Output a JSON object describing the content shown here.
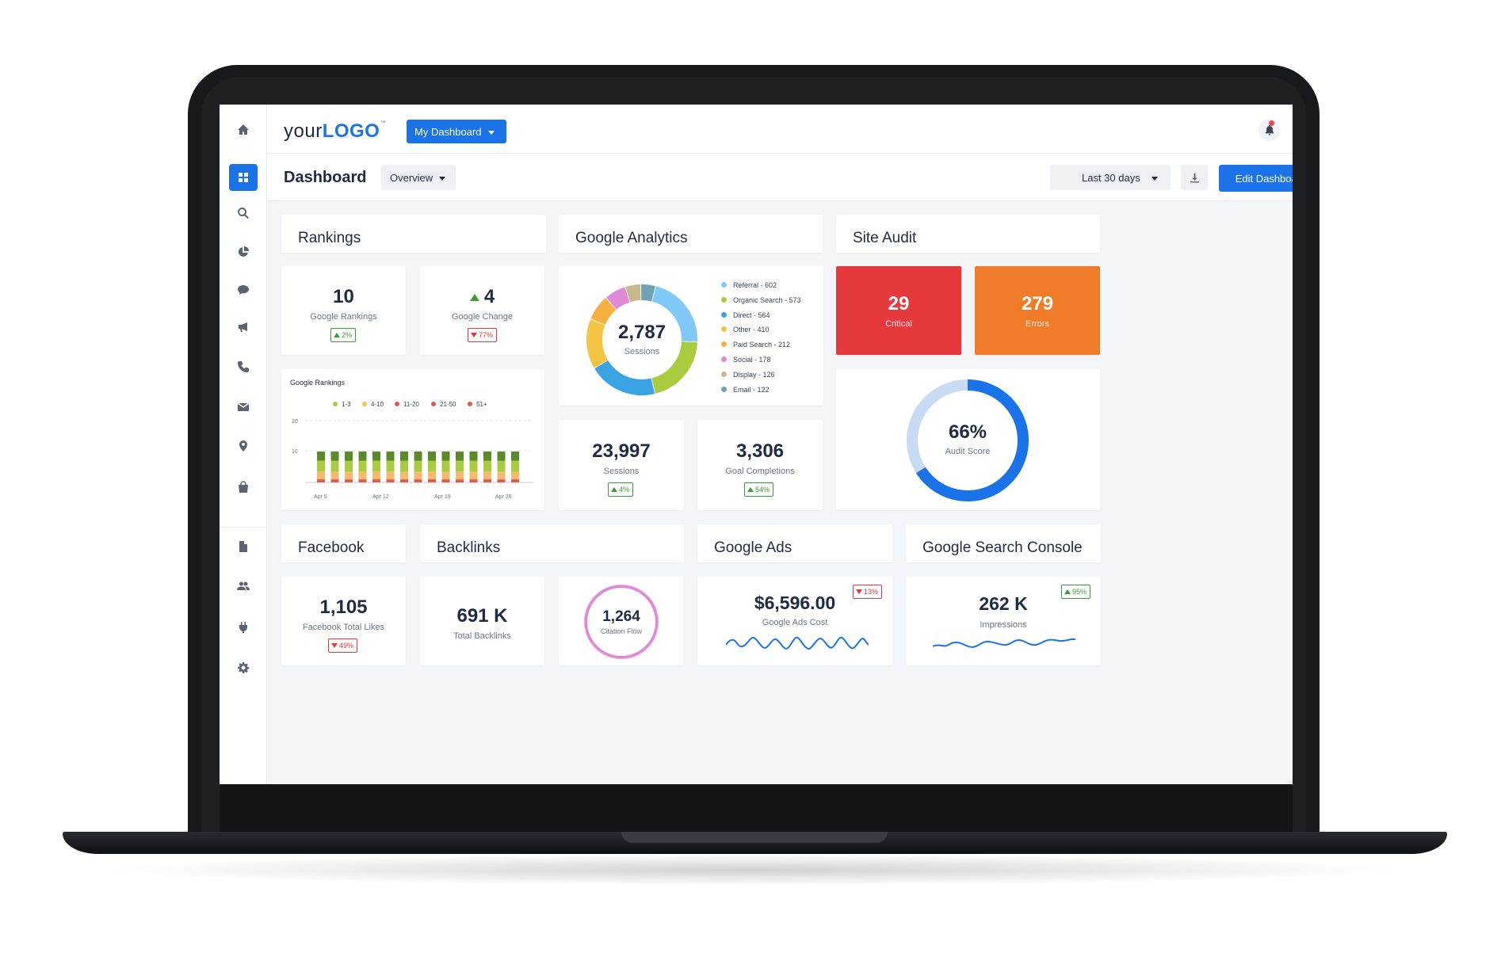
{
  "topbar": {
    "logo_light": "your",
    "logo_bold": "LOGO",
    "logo_tm": "™",
    "dashboard_menu": "My Dashboard"
  },
  "subbar": {
    "title": "Dashboard",
    "view": "Overview",
    "date_range": "Last 30 days",
    "edit_button": "Edit Dashboard"
  },
  "sidebar": {
    "icons": [
      "home-icon",
      "dashboard-icon",
      "search-icon",
      "pie-chart-icon",
      "chat-icon",
      "megaphone-icon",
      "phone-icon",
      "mail-icon",
      "location-pin-icon",
      "shopping-bag-icon",
      "document-icon",
      "users-icon",
      "plug-icon",
      "gear-icon"
    ],
    "active": "dashboard-icon"
  },
  "sections": {
    "rankings": "Rankings",
    "analytics": "Google Analytics",
    "site_audit": "Site Audit",
    "facebook": "Facebook",
    "backlinks": "Backlinks",
    "google_ads": "Google Ads",
    "search_console": "Google Search Console"
  },
  "rankings": {
    "google_rankings": {
      "value": "10",
      "label": "Google Rankings",
      "change": "2%",
      "direction": "up"
    },
    "google_change": {
      "value": "4",
      "label": "Google Change",
      "change": "77%",
      "direction": "down"
    }
  },
  "rankings_chart": {
    "title": "Google Rankings",
    "legend": [
      {
        "name": "1-3",
        "color": "#a9cc3e"
      },
      {
        "name": "4-10",
        "color": "#f4c542"
      },
      {
        "name": "11-20",
        "color": "#e05a4e"
      },
      {
        "name": "21-50",
        "color": "#e05a4e"
      },
      {
        "name": "51+",
        "color": "#e05a4e"
      }
    ],
    "x_ticks": [
      "Apr 5",
      "Apr 12",
      "Apr 19",
      "Apr 26"
    ],
    "y_ticks": [
      "20",
      "10"
    ]
  },
  "chart_data": {
    "type": "bar",
    "stacked": true,
    "title": "Google Rankings",
    "bar_count": 15,
    "x_ticks": [
      "Apr 5",
      "Apr 12",
      "Apr 19",
      "Apr 26"
    ],
    "series": [
      {
        "color": "#e05a4e",
        "values": [
          1,
          1,
          1,
          1,
          1,
          1,
          1,
          1,
          1,
          1,
          1,
          1,
          1,
          1,
          1
        ]
      },
      {
        "color": "#f7b96a",
        "values": [
          2.5,
          2.5,
          2.5,
          2.5,
          2.5,
          2.5,
          2.5,
          2.5,
          2.5,
          2.5,
          2.5,
          2.5,
          2.5,
          2.5,
          2.5
        ]
      },
      {
        "color": "#a9cc3e",
        "values": [
          3.5,
          3.5,
          3.5,
          3.5,
          3.5,
          3.5,
          3.5,
          3.5,
          3.5,
          3.5,
          3.5,
          3.5,
          3.5,
          3.5,
          3.5
        ]
      },
      {
        "color": "#5b8a2a",
        "values": [
          3,
          3,
          3,
          3,
          3,
          3,
          3,
          3,
          3,
          3,
          3,
          3,
          3,
          3,
          3
        ]
      }
    ],
    "ylim": [
      0,
      20
    ],
    "y_ticks": [
      10,
      20
    ],
    "grid": true,
    "legend": "top"
  },
  "sessions_donut": {
    "total": "2,787",
    "label": "Sessions",
    "segments": [
      {
        "label": "Referral - 602",
        "value": 602,
        "color": "#7fc8f8"
      },
      {
        "label": "Organic Search - 573",
        "value": 573,
        "color": "#a9cc3e"
      },
      {
        "label": "Direct - 564",
        "value": 564,
        "color": "#3aa3e3"
      },
      {
        "label": "Other - 410",
        "value": 410,
        "color": "#f4c542"
      },
      {
        "label": "Paid Search - 212",
        "value": 212,
        "color": "#f7b040"
      },
      {
        "label": "Social - 178",
        "value": 178,
        "color": "#e08ad6"
      },
      {
        "label": "Display - 126",
        "value": 126,
        "color": "#c8b98a"
      },
      {
        "label": "Email - 122",
        "value": 122,
        "color": "#6fa3b5"
      }
    ]
  },
  "analytics": {
    "sessions": {
      "value": "23,997",
      "label": "Sessions",
      "change": "4%",
      "direction": "up"
    },
    "goals": {
      "value": "3,306",
      "label": "Goal Completions",
      "change": "54%",
      "direction": "up"
    }
  },
  "site_audit": {
    "critical": {
      "value": "29",
      "label": "Critical",
      "color": "#e5393d"
    },
    "errors": {
      "value": "279",
      "label": "Errors",
      "color": "#f07c2a"
    },
    "score": {
      "value": "66%",
      "label": "Audit Score",
      "percent": 66
    }
  },
  "facebook": {
    "value": "1,105",
    "label": "Facebook Total Likes",
    "change": "49%",
    "direction": "down"
  },
  "backlinks": {
    "total": {
      "value": "691 K",
      "label": "Total Backlinks"
    },
    "citation": {
      "value": "1,264",
      "label": "Citation Flow"
    }
  },
  "google_ads": {
    "value": "$6,596.00",
    "label": "Google Ads Cost",
    "change": "13%",
    "direction": "down"
  },
  "search_console": {
    "value": "262 K",
    "label": "Impressions",
    "change": "95%",
    "direction": "up"
  },
  "colors": {
    "accent": "#1a73e8",
    "text": "#1f2a44",
    "up": "#3c9a3c",
    "down": "#e2393b"
  }
}
